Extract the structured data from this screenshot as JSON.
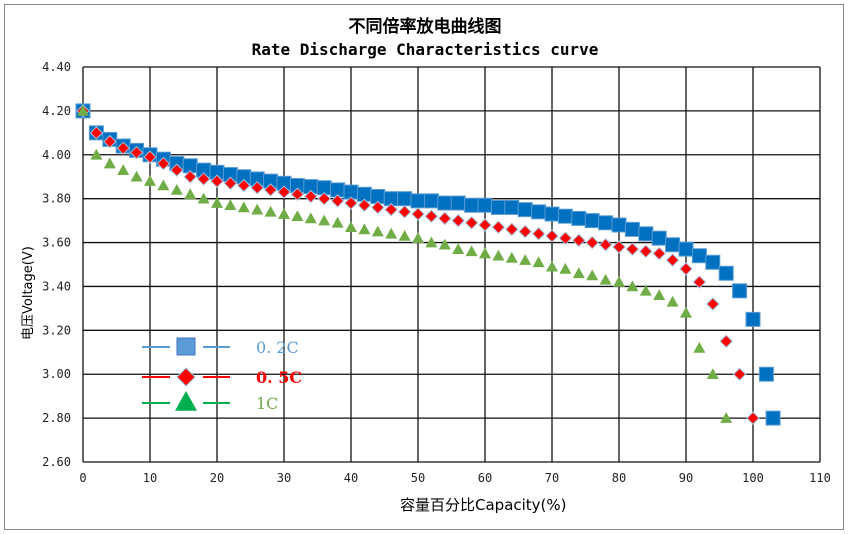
{
  "chart_data": {
    "type": "scatter",
    "title": "不同倍率放电曲线图",
    "subtitle": "Rate Discharge Characteristics curve",
    "xlabel": "容量百分比Capacity(%)",
    "ylabel": "电压Voltage(V)",
    "xlim": [
      0,
      110
    ],
    "ylim": [
      2.6,
      4.4
    ],
    "xticks": [
      "0",
      "10",
      "20",
      "30",
      "40",
      "50",
      "60",
      "70",
      "80",
      "90",
      "100",
      "110"
    ],
    "yticks": [
      "2.60",
      "2.80",
      "3.00",
      "3.20",
      "3.40",
      "3.60",
      "3.80",
      "4.00",
      "4.20",
      "4.40"
    ],
    "grid": true,
    "legend_position": "left",
    "series": [
      {
        "name": "0.2C",
        "marker": "square",
        "color": "#0070C0",
        "legend_color": "#5B9BD5",
        "x": [
          0,
          2,
          4,
          6,
          8,
          10,
          12,
          14,
          16,
          18,
          20,
          22,
          24,
          26,
          28,
          30,
          32,
          34,
          36,
          38,
          40,
          42,
          44,
          46,
          48,
          50,
          52,
          54,
          56,
          58,
          60,
          62,
          64,
          66,
          68,
          70,
          72,
          74,
          76,
          78,
          80,
          82,
          84,
          86,
          88,
          90,
          92,
          94,
          96,
          98,
          100,
          102,
          103
        ],
        "y": [
          4.2,
          4.1,
          4.07,
          4.04,
          4.02,
          4.0,
          3.98,
          3.96,
          3.95,
          3.93,
          3.92,
          3.91,
          3.9,
          3.89,
          3.88,
          3.87,
          3.86,
          3.855,
          3.85,
          3.84,
          3.83,
          3.82,
          3.81,
          3.8,
          3.8,
          3.79,
          3.79,
          3.78,
          3.78,
          3.77,
          3.77,
          3.76,
          3.76,
          3.75,
          3.74,
          3.73,
          3.72,
          3.71,
          3.7,
          3.69,
          3.68,
          3.66,
          3.64,
          3.62,
          3.59,
          3.57,
          3.54,
          3.51,
          3.46,
          3.38,
          3.25,
          3.0,
          2.8
        ]
      },
      {
        "name": "0.5C",
        "marker": "diamond",
        "color": "#FF0000",
        "legend_color": "#FF0000",
        "x": [
          0,
          2,
          4,
          6,
          8,
          10,
          12,
          14,
          16,
          18,
          20,
          22,
          24,
          26,
          28,
          30,
          32,
          34,
          36,
          38,
          40,
          42,
          44,
          46,
          48,
          50,
          52,
          54,
          56,
          58,
          60,
          62,
          64,
          66,
          68,
          70,
          72,
          74,
          76,
          78,
          80,
          82,
          84,
          86,
          88,
          90,
          92,
          94,
          96,
          98,
          100
        ],
        "y": [
          4.2,
          4.1,
          4.06,
          4.03,
          4.01,
          3.99,
          3.96,
          3.93,
          3.9,
          3.89,
          3.88,
          3.87,
          3.86,
          3.85,
          3.84,
          3.83,
          3.82,
          3.81,
          3.8,
          3.79,
          3.78,
          3.77,
          3.76,
          3.75,
          3.74,
          3.73,
          3.72,
          3.71,
          3.7,
          3.69,
          3.68,
          3.67,
          3.66,
          3.65,
          3.64,
          3.63,
          3.62,
          3.61,
          3.6,
          3.59,
          3.58,
          3.57,
          3.56,
          3.55,
          3.52,
          3.48,
          3.42,
          3.32,
          3.15,
          3.0,
          2.8
        ]
      },
      {
        "name": "1C",
        "marker": "triangle",
        "color": "#70AD47",
        "legend_color": "#00B050",
        "x": [
          0,
          2,
          4,
          6,
          8,
          10,
          12,
          14,
          16,
          18,
          20,
          22,
          24,
          26,
          28,
          30,
          32,
          34,
          36,
          38,
          40,
          42,
          44,
          46,
          48,
          50,
          52,
          54,
          56,
          58,
          60,
          62,
          64,
          66,
          68,
          70,
          72,
          74,
          76,
          78,
          80,
          82,
          84,
          86,
          88,
          90,
          92,
          94,
          96
        ],
        "y": [
          4.2,
          4.0,
          3.96,
          3.93,
          3.9,
          3.88,
          3.86,
          3.84,
          3.82,
          3.8,
          3.78,
          3.77,
          3.76,
          3.75,
          3.74,
          3.73,
          3.72,
          3.71,
          3.7,
          3.69,
          3.67,
          3.66,
          3.65,
          3.64,
          3.63,
          3.62,
          3.6,
          3.59,
          3.57,
          3.56,
          3.55,
          3.54,
          3.53,
          3.52,
          3.51,
          3.49,
          3.48,
          3.46,
          3.45,
          3.43,
          3.42,
          3.4,
          3.38,
          3.36,
          3.33,
          3.28,
          3.12,
          3.0,
          2.8
        ]
      }
    ],
    "legend_labels": [
      "0. 2C",
      "0. 5C",
      "1C"
    ]
  }
}
